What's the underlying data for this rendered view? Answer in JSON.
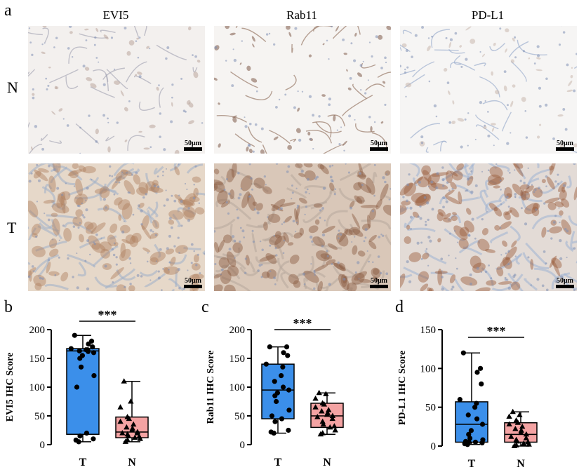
{
  "figure": {
    "panel_a": "a",
    "columns": [
      "EVI5",
      "Rab11",
      "PD-L1"
    ],
    "rows": [
      "N",
      "T"
    ],
    "scalebar_label": "50μm",
    "tiles": [
      {
        "row": "N",
        "col": "EVI5",
        "bg": "#f3f0ee",
        "stain": "#b9a59c",
        "fiber": "#a9aab8"
      },
      {
        "row": "N",
        "col": "Rab11",
        "bg": "#f6f4f2",
        "stain": "#7d5a48",
        "fiber": "#9a7a6a"
      },
      {
        "row": "N",
        "col": "PD-L1",
        "bg": "#f6f5f4",
        "stain": "#c9b7ad",
        "fiber": "#9fb0cf"
      },
      {
        "row": "T",
        "col": "EVI5",
        "bg": "#e6d8c9",
        "stain": "#b08060",
        "fiber": "#9fb0c8"
      },
      {
        "row": "T",
        "col": "Rab11",
        "bg": "#d9c7b8",
        "stain": "#8a5a40",
        "fiber": "#b7a89c"
      },
      {
        "row": "T",
        "col": "PD-L1",
        "bg": "#e3dbd6",
        "stain": "#9a5a3a",
        "fiber": "#9eb2d3"
      }
    ]
  },
  "chart_data": [
    {
      "panel": "b",
      "type": "box",
      "ylabel": "EVI5 IHC Score",
      "ylim": [
        0,
        200
      ],
      "yticks": [
        0,
        50,
        100,
        150,
        200
      ],
      "categories": [
        "T",
        "N"
      ],
      "significance": "***",
      "colors": [
        "#3b8fea",
        "#f4a3a3"
      ],
      "series": [
        {
          "category": "T",
          "min": 5,
          "q1": 18,
          "median": 163,
          "q3": 167,
          "max": 190,
          "points": [
            5,
            8,
            10,
            15,
            20,
            100,
            120,
            135,
            150,
            155,
            160,
            162,
            163,
            165,
            165,
            167,
            170,
            175,
            180,
            190
          ]
        },
        {
          "category": "N",
          "min": 5,
          "q1": 12,
          "median": 22,
          "q3": 48,
          "max": 110,
          "points": [
            5,
            8,
            10,
            12,
            14,
            15,
            18,
            20,
            20,
            22,
            25,
            28,
            30,
            35,
            40,
            45,
            48,
            65,
            75,
            110
          ]
        }
      ]
    },
    {
      "panel": "c",
      "type": "box",
      "ylabel": "Rab11 IHC Score",
      "ylim": [
        0,
        200
      ],
      "yticks": [
        0,
        50,
        100,
        150,
        200
      ],
      "categories": [
        "T",
        "N"
      ],
      "significance": "***",
      "colors": [
        "#3b8fea",
        "#f4a3a3"
      ],
      "series": [
        {
          "category": "T",
          "min": 20,
          "q1": 45,
          "median": 95,
          "q3": 140,
          "max": 170,
          "points": [
            20,
            22,
            25,
            40,
            45,
            50,
            60,
            75,
            85,
            90,
            95,
            100,
            110,
            120,
            135,
            140,
            155,
            160,
            170,
            170
          ]
        },
        {
          "category": "N",
          "min": 18,
          "q1": 30,
          "median": 50,
          "q3": 72,
          "max": 90,
          "points": [
            18,
            20,
            25,
            30,
            32,
            35,
            40,
            45,
            48,
            50,
            52,
            55,
            58,
            60,
            65,
            70,
            72,
            80,
            88,
            90
          ]
        }
      ]
    },
    {
      "panel": "d",
      "type": "box",
      "ylabel": "PD-L1 IHC Score",
      "ylim": [
        0,
        150
      ],
      "yticks": [
        0,
        50,
        100,
        150
      ],
      "categories": [
        "T",
        "N"
      ],
      "significance": "***",
      "colors": [
        "#3b8fea",
        "#f4a3a3"
      ],
      "series": [
        {
          "category": "T",
          "min": 2,
          "q1": 5,
          "median": 28,
          "q3": 57,
          "max": 120,
          "points": [
            2,
            3,
            4,
            5,
            5,
            6,
            8,
            10,
            15,
            20,
            28,
            35,
            40,
            50,
            55,
            60,
            80,
            95,
            100,
            120
          ]
        },
        {
          "category": "N",
          "min": 0,
          "q1": 5,
          "median": 15,
          "q3": 30,
          "max": 44,
          "points": [
            0,
            1,
            2,
            3,
            5,
            6,
            8,
            10,
            12,
            15,
            17,
            20,
            22,
            25,
            28,
            30,
            33,
            38,
            40,
            44
          ]
        }
      ]
    }
  ]
}
